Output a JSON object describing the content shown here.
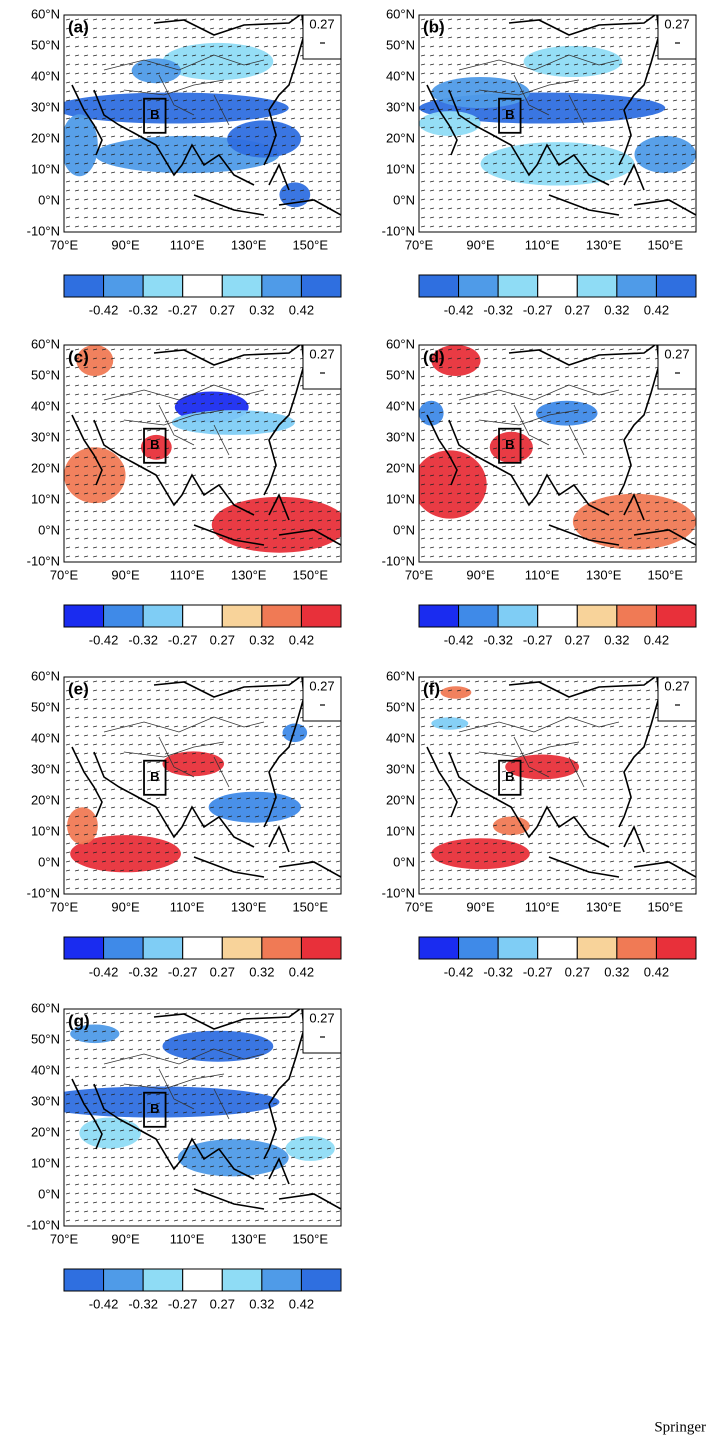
{
  "y_tick_labels": [
    "60°N",
    "50°N",
    "40°N",
    "30°N",
    "20°N",
    "10°N",
    "0°N",
    "-10°N"
  ],
  "x_tick_labels": [
    "70°E",
    "90°E",
    "110°E",
    "130°E",
    "150°E"
  ],
  "colorbar_labels": [
    "-0.42",
    "-0.32",
    "-0.27",
    "0.27",
    "0.32",
    "0.42"
  ],
  "panels": [
    {
      "label": "(a)",
      "reference_vector": "0.27",
      "box_label": "B",
      "colorbar_colors": [
        "#2f6fe0",
        "#4f9be8",
        "#8fdcf5",
        "#ffffff",
        "#8fdcf5",
        "#4f9be8",
        "#2f6fe0"
      ]
    },
    {
      "label": "(b)",
      "reference_vector": "0.27",
      "box_label": "B",
      "colorbar_colors": [
        "#2f6fe0",
        "#4f9be8",
        "#8fdcf5",
        "#ffffff",
        "#8fdcf5",
        "#4f9be8",
        "#2f6fe0"
      ]
    },
    {
      "label": "(c)",
      "reference_vector": "0.27",
      "box_label": "B",
      "colorbar_colors": [
        "#1a2cf0",
        "#3f8ae8",
        "#7fcdf5",
        "#ffffff",
        "#f8d39a",
        "#f07a55",
        "#e8303a"
      ]
    },
    {
      "label": "(d)",
      "reference_vector": "0.27",
      "box_label": "B",
      "colorbar_colors": [
        "#1a2cf0",
        "#3f8ae8",
        "#7fcdf5",
        "#ffffff",
        "#f8d39a",
        "#f07a55",
        "#e8303a"
      ]
    },
    {
      "label": "(e)",
      "reference_vector": "0.27",
      "box_label": "B",
      "colorbar_colors": [
        "#1a2cf0",
        "#3f8ae8",
        "#7fcdf5",
        "#ffffff",
        "#f8d39a",
        "#f07a55",
        "#e8303a"
      ]
    },
    {
      "label": "(f)",
      "reference_vector": "0.27",
      "box_label": "B",
      "colorbar_colors": [
        "#1a2cf0",
        "#3f8ae8",
        "#7fcdf5",
        "#ffffff",
        "#f8d39a",
        "#f07a55",
        "#e8303a"
      ]
    },
    {
      "label": "(g)",
      "reference_vector": "0.27",
      "box_label": "B",
      "colorbar_colors": [
        "#2f6fe0",
        "#4f9be8",
        "#8fdcf5",
        "#ffffff",
        "#8fdcf5",
        "#4f9be8",
        "#2f6fe0"
      ]
    }
  ],
  "footer": "Springer"
}
